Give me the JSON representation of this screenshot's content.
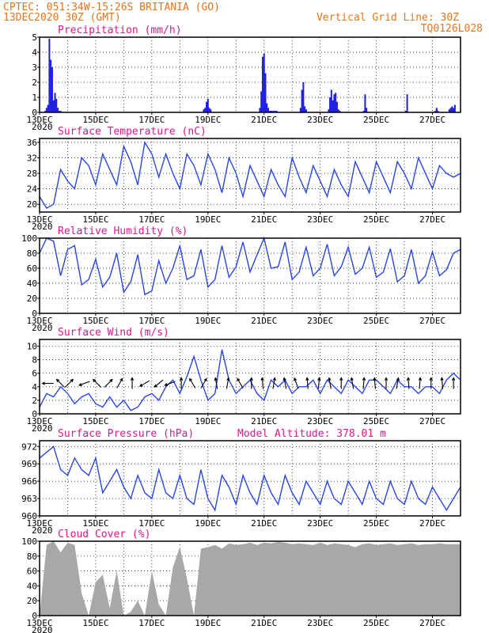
{
  "header": {
    "line1": "CPTEC:   051:34W-15:26S  BRITANIA (GO)",
    "line2": "13DEC2020 30Z (GMT)",
    "grid_note": "Vertical Grid Line: 30Z",
    "code": "TQ0126L028"
  },
  "colors": {
    "header": "#e8741a",
    "panel_title": "#e0178a",
    "series": "#2846e6",
    "precip_bars": "#2020e0",
    "cloud_fill": "#a8a8a8"
  },
  "chart_data": [
    {
      "id": "precip",
      "type": "bar",
      "title": "Precipitation (mm/h)",
      "ylim": [
        0,
        5
      ],
      "yticks": [
        0,
        1,
        2,
        3,
        4,
        5
      ],
      "x": [
        0.2,
        0.25,
        0.3,
        0.35,
        0.4,
        0.45,
        0.5,
        0.55,
        0.6,
        0.65,
        0.7,
        0.75,
        5.85,
        5.9,
        5.95,
        6.0,
        6.05,
        6.1,
        7.85,
        7.9,
        7.95,
        8.0,
        8.05,
        8.1,
        8.15,
        8.2,
        8.25,
        8.3,
        8.35,
        8.4,
        8.45,
        9.3,
        9.35,
        9.4,
        9.45,
        9.5,
        10.3,
        10.35,
        10.4,
        10.45,
        10.5,
        10.55,
        10.6,
        10.65,
        10.7,
        11.55,
        11.6,
        11.65,
        13.05,
        13.1,
        14.1,
        14.15,
        14.15,
        14.2,
        14.6,
        14.65,
        14.7,
        14.75,
        14.8
      ],
      "values": [
        0.1,
        0.3,
        0.5,
        4.9,
        3.5,
        3.0,
        0.8,
        1.3,
        0.9,
        0.3,
        0.1,
        0.1,
        0.2,
        0.3,
        0.7,
        0.9,
        0.3,
        0.2,
        0.3,
        1.4,
        3.7,
        3.9,
        2.6,
        0.6,
        0.3,
        0.1,
        0.1,
        0.1,
        0.1,
        0.1,
        0.1,
        0.3,
        1.5,
        2.0,
        0.4,
        0.2,
        0.2,
        1.0,
        1.5,
        0.8,
        1.2,
        1.3,
        0.7,
        0.2,
        0.1,
        0.1,
        1.2,
        0.3,
        0.1,
        1.2,
        0.1,
        0.3,
        0.2,
        0.1,
        0.2,
        0.3,
        0.4,
        0.3,
        0.5
      ]
    },
    {
      "id": "temp",
      "type": "line",
      "title": "Surface Temperature (nC)",
      "ylim": [
        18,
        37
      ],
      "yticks": [
        20,
        24,
        28,
        32,
        36
      ],
      "x": [
        0.0,
        0.25,
        0.5,
        0.75,
        1.0,
        1.25,
        1.5,
        1.75,
        2.0,
        2.25,
        2.5,
        2.75,
        3.0,
        3.25,
        3.5,
        3.75,
        4.0,
        4.25,
        4.5,
        4.75,
        5.0,
        5.25,
        5.5,
        5.75,
        6.0,
        6.25,
        6.5,
        6.75,
        7.0,
        7.25,
        7.5,
        7.75,
        8.0,
        8.25,
        8.5,
        8.75,
        9.0,
        9.25,
        9.5,
        9.75,
        10.0,
        10.25,
        10.5,
        10.75,
        11.0,
        11.25,
        11.5,
        11.75,
        12.0,
        12.25,
        12.5,
        12.75,
        13.0,
        13.25,
        13.5,
        13.75,
        14.0,
        14.25,
        14.5,
        14.75,
        15.0
      ],
      "values": [
        22,
        19,
        20,
        29,
        26,
        24,
        32,
        30,
        25,
        33,
        29,
        25,
        35,
        31,
        25,
        36,
        33,
        27,
        33,
        28,
        24,
        33,
        30,
        25,
        33,
        29,
        23,
        32,
        28,
        22,
        30,
        26,
        22,
        29,
        25,
        22,
        32,
        27,
        23,
        30,
        26,
        22,
        29,
        25,
        22,
        31,
        27,
        23,
        31,
        27,
        23,
        31,
        28,
        24,
        32,
        28,
        24,
        30,
        28,
        27,
        28
      ]
    },
    {
      "id": "rh",
      "type": "line",
      "title": "Relative Humidity (%)",
      "ylim": [
        0,
        100
      ],
      "yticks": [
        0,
        20,
        40,
        60,
        80,
        100
      ],
      "x": [
        0.0,
        0.25,
        0.5,
        0.75,
        1.0,
        1.25,
        1.5,
        1.75,
        2.0,
        2.25,
        2.5,
        2.75,
        3.0,
        3.25,
        3.5,
        3.75,
        4.0,
        4.25,
        4.5,
        4.75,
        5.0,
        5.25,
        5.5,
        5.75,
        6.0,
        6.25,
        6.5,
        6.75,
        7.0,
        7.25,
        7.5,
        7.75,
        8.0,
        8.25,
        8.5,
        8.75,
        9.0,
        9.25,
        9.5,
        9.75,
        10.0,
        10.25,
        10.5,
        10.75,
        11.0,
        11.25,
        11.5,
        11.75,
        12.0,
        12.25,
        12.5,
        12.75,
        13.0,
        13.25,
        13.5,
        13.75,
        14.0,
        14.25,
        14.5,
        14.75,
        15.0
      ],
      "values": [
        80,
        100,
        96,
        50,
        85,
        90,
        38,
        45,
        72,
        35,
        48,
        80,
        28,
        42,
        78,
        25,
        30,
        70,
        40,
        60,
        90,
        45,
        50,
        85,
        35,
        45,
        90,
        48,
        62,
        95,
        55,
        78,
        100,
        60,
        62,
        95,
        45,
        55,
        88,
        50,
        60,
        92,
        50,
        62,
        88,
        52,
        60,
        88,
        48,
        55,
        86,
        42,
        50,
        85,
        40,
        50,
        82,
        50,
        58,
        80,
        85
      ]
    },
    {
      "id": "wind",
      "type": "line",
      "title": "Surface Wind (m/s)",
      "ylim": [
        0,
        11
      ],
      "yticks": [
        0,
        2,
        4,
        6,
        8,
        10
      ],
      "x": [
        0.0,
        0.25,
        0.5,
        0.75,
        1.0,
        1.25,
        1.5,
        1.75,
        2.0,
        2.25,
        2.5,
        2.75,
        3.0,
        3.25,
        3.5,
        3.75,
        4.0,
        4.25,
        4.5,
        4.75,
        5.0,
        5.25,
        5.5,
        5.75,
        6.0,
        6.25,
        6.5,
        6.75,
        7.0,
        7.25,
        7.5,
        7.75,
        8.0,
        8.25,
        8.5,
        8.75,
        9.0,
        9.25,
        9.5,
        9.75,
        10.0,
        10.25,
        10.5,
        10.75,
        11.0,
        11.25,
        11.5,
        11.75,
        12.0,
        12.25,
        12.5,
        12.75,
        13.0,
        13.25,
        13.5,
        13.75,
        14.0,
        14.25,
        14.5,
        14.75,
        15.0
      ],
      "values": [
        1,
        3,
        2.5,
        4,
        3,
        1.5,
        2.5,
        3,
        1.5,
        1,
        2.5,
        1,
        2,
        0.5,
        1,
        2.5,
        3,
        2,
        4,
        5,
        3,
        5.5,
        8.5,
        5,
        2,
        3,
        9.5,
        5,
        3,
        4,
        5,
        3,
        2,
        5,
        4,
        5,
        3,
        4,
        4,
        5,
        3,
        5,
        4,
        3,
        5,
        4,
        3,
        5,
        5,
        4,
        3,
        5,
        4,
        4,
        3,
        4,
        4,
        3,
        5,
        6,
        5
      ],
      "arrow_x": [
        0.3,
        0.75,
        1.05,
        1.6,
        2.05,
        2.45,
        2.85,
        3.3,
        3.75,
        4.25,
        4.65,
        5.05,
        5.45,
        5.85,
        6.3,
        6.7,
        7.15,
        7.55,
        7.95,
        8.35,
        8.75,
        9.15,
        9.55,
        9.95,
        10.35,
        10.75,
        11.15,
        11.55,
        11.95,
        12.35,
        12.75,
        13.15,
        13.55,
        13.95,
        14.35,
        14.75
      ],
      "arrow_dir": [
        180,
        135,
        45,
        200,
        135,
        45,
        60,
        90,
        210,
        220,
        200,
        90,
        120,
        60,
        100,
        80,
        120,
        90,
        95,
        80,
        100,
        110,
        95,
        85,
        100,
        90,
        100,
        85,
        95,
        90,
        80,
        95,
        85,
        90,
        95,
        90
      ]
    },
    {
      "id": "pres",
      "type": "line",
      "title": "Surface Pressure (hPa)",
      "ylim": [
        960,
        973
      ],
      "yticks": [
        960,
        963,
        966,
        969,
        972
      ],
      "x": [
        0.0,
        0.25,
        0.5,
        0.75,
        1.0,
        1.25,
        1.5,
        1.75,
        2.0,
        2.25,
        2.5,
        2.75,
        3.0,
        3.25,
        3.5,
        3.75,
        4.0,
        4.25,
        4.5,
        4.75,
        5.0,
        5.25,
        5.5,
        5.75,
        6.0,
        6.25,
        6.5,
        6.75,
        7.0,
        7.25,
        7.5,
        7.75,
        8.0,
        8.25,
        8.5,
        8.75,
        9.0,
        9.25,
        9.5,
        9.75,
        10.0,
        10.25,
        10.5,
        10.75,
        11.0,
        11.25,
        11.5,
        11.75,
        12.0,
        12.25,
        12.5,
        12.75,
        13.0,
        13.25,
        13.5,
        13.75,
        14.0,
        14.25,
        14.5,
        14.75,
        15.0
      ],
      "values": [
        970,
        971,
        972,
        968,
        967,
        970,
        968,
        967,
        970,
        964,
        966,
        968,
        965,
        963,
        967,
        964,
        963,
        968,
        964,
        963,
        967,
        963,
        962,
        968,
        963,
        961,
        967,
        965,
        962,
        967,
        964,
        962,
        967,
        964,
        962,
        967,
        964,
        962,
        966,
        964,
        962,
        966,
        963,
        962,
        966,
        964,
        962,
        966,
        963,
        962,
        966,
        963,
        962,
        966,
        963,
        962,
        965,
        963,
        961,
        963,
        965
      ]
    },
    {
      "id": "cloud",
      "type": "area",
      "title": "Cloud Cover (%)",
      "ylim": [
        0,
        100
      ],
      "yticks": [
        0,
        20,
        40,
        60,
        80,
        100
      ],
      "x": [
        0.0,
        0.25,
        0.5,
        0.75,
        1.0,
        1.25,
        1.5,
        1.75,
        2.0,
        2.25,
        2.5,
        2.75,
        3.0,
        3.25,
        3.5,
        3.75,
        4.0,
        4.25,
        4.5,
        4.75,
        5.0,
        5.25,
        5.5,
        5.75,
        6.0,
        6.25,
        6.5,
        6.75,
        7.0,
        7.25,
        7.5,
        7.75,
        8.0,
        8.25,
        8.5,
        8.75,
        9.0,
        9.25,
        9.5,
        9.75,
        10.0,
        10.25,
        10.5,
        10.75,
        11.0,
        11.25,
        11.5,
        11.75,
        12.0,
        12.25,
        12.5,
        12.75,
        13.0,
        13.25,
        13.5,
        13.75,
        14.0,
        14.25,
        14.5,
        14.75,
        15.0
      ],
      "values": [
        0,
        95,
        100,
        85,
        98,
        95,
        30,
        0,
        45,
        55,
        10,
        60,
        0,
        5,
        20,
        0,
        60,
        15,
        0,
        65,
        92,
        50,
        0,
        90,
        92,
        95,
        90,
        97,
        95,
        96,
        98,
        95,
        98,
        97,
        99,
        98,
        96,
        97,
        96,
        95,
        98,
        95,
        97,
        96,
        95,
        92,
        96,
        97,
        95,
        96,
        97,
        95,
        96,
        97,
        95,
        96,
        96,
        97,
        96,
        96,
        96
      ]
    }
  ],
  "panels": {
    "pres_extra": "Model Altitude: 378.01 m"
  },
  "xaxis": {
    "labels": [
      "13DEC",
      "15DEC",
      "17DEC",
      "19DEC",
      "21DEC",
      "23DEC",
      "25DEC",
      "27DEC"
    ],
    "year": "2020"
  }
}
